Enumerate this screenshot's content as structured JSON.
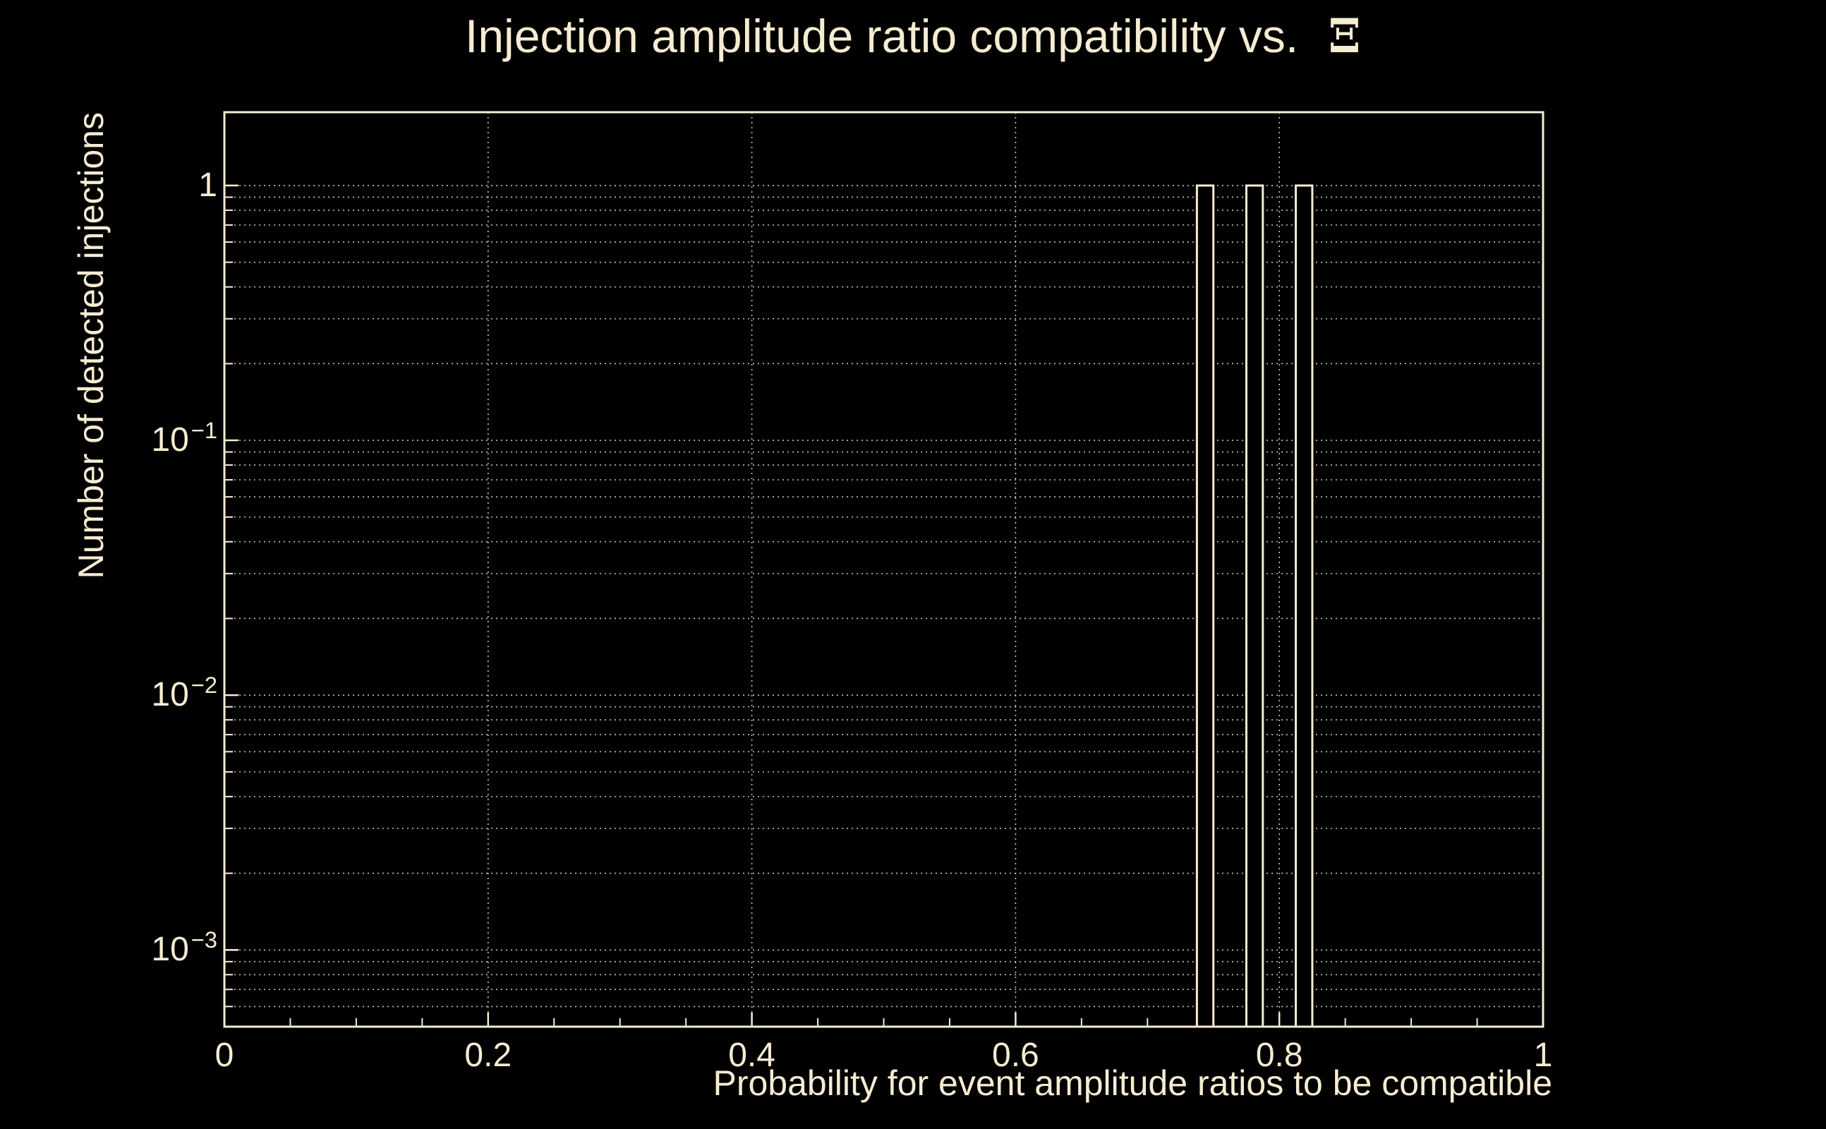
{
  "chart_data": {
    "type": "bar",
    "title": "Injection amplitude ratio compatibility vs.",
    "title_symbol": "Ξ",
    "xlabel": "Probability for event amplitude ratios to be compatible",
    "ylabel": "Number of detected injections",
    "x_axis": {
      "min": 0,
      "max": 1,
      "major_ticks": [
        0,
        0.2,
        0.4,
        0.6,
        0.8,
        1
      ],
      "major_tick_labels": [
        "0",
        "0.2",
        "0.4",
        "0.6",
        "0.8",
        "1"
      ],
      "minor_tick_step": 0.05
    },
    "y_axis": {
      "scale": "log",
      "min": 0.0005,
      "max": 1.94,
      "decade_ticks": [
        1,
        0.1,
        0.01,
        0.001
      ],
      "decade_tick_labels": [
        {
          "base": "1",
          "exp": null
        },
        {
          "base": "10",
          "exp": "−1"
        },
        {
          "base": "10",
          "exp": "−2"
        },
        {
          "base": "10",
          "exp": "−3"
        }
      ]
    },
    "grid": {
      "horizontal": "log-major-and-minor",
      "vertical": "x-major",
      "style": "dotted"
    },
    "bars": [
      {
        "x_left": 0.7375,
        "x_right": 0.75,
        "height": 1
      },
      {
        "x_left": 0.775,
        "x_right": 0.7875,
        "height": 1
      },
      {
        "x_left": 0.8125,
        "x_right": 0.825,
        "height": 1
      }
    ],
    "colors": {
      "background": "#000000",
      "foreground": "#f6ecd2",
      "grid": "#cdc3a9",
      "bar_fill": "#000000",
      "bar_outline": "#f6ecd2"
    }
  }
}
